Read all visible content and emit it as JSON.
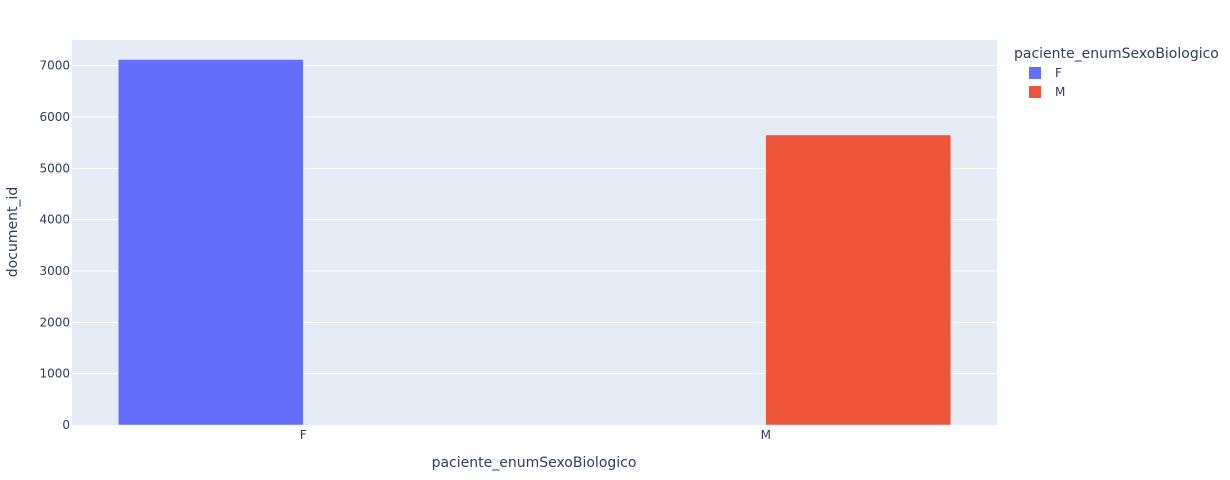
{
  "chart_data": {
    "type": "bar",
    "categories": [
      "F",
      "M"
    ],
    "series": [
      {
        "name": "F",
        "category": "F",
        "value": 7120,
        "color": "#636efa"
      },
      {
        "name": "M",
        "category": "M",
        "value": 5650,
        "color": "#ef553b"
      }
    ],
    "xlabel": "paciente_enumSexoBiologico",
    "ylabel": "document_id",
    "ylim": [
      0,
      7500
    ],
    "yticks": [
      0,
      1000,
      2000,
      3000,
      4000,
      5000,
      6000,
      7000
    ],
    "grid": true,
    "legend": {
      "title": "paciente_enumSexoBiologico",
      "placement": "top-right"
    },
    "plot_background": "#e5ecf6"
  }
}
